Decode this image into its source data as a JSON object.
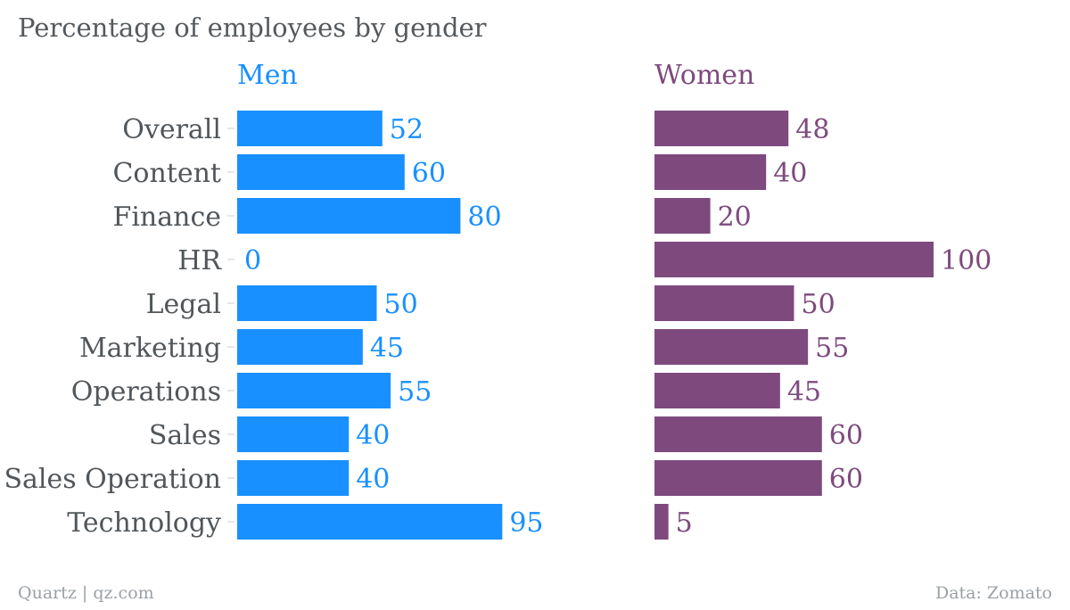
{
  "title": "Percentage of employees by gender",
  "footer": {
    "source_left": "Quartz | qz.com",
    "source_right": "Data: Zomato"
  },
  "colors": {
    "men": "#1890ff",
    "women": "#7e4a7e",
    "text": "#51565a",
    "tick": "#cccccc"
  },
  "chart_data": {
    "type": "bar",
    "orientation": "horizontal",
    "title": "Percentage of employees by gender",
    "categories": [
      "Overall",
      "Content",
      "Finance",
      "HR",
      "Legal",
      "Marketing",
      "Operations",
      "Sales",
      "Sales Operation",
      "Technology"
    ],
    "series": [
      {
        "name": "Men",
        "values": [
          52,
          60,
          80,
          0,
          50,
          45,
          55,
          40,
          40,
          95
        ]
      },
      {
        "name": "Women",
        "values": [
          48,
          40,
          20,
          100,
          50,
          55,
          45,
          60,
          60,
          5
        ]
      }
    ],
    "xlim": [
      0,
      100
    ],
    "grid": false,
    "legend": "none"
  }
}
